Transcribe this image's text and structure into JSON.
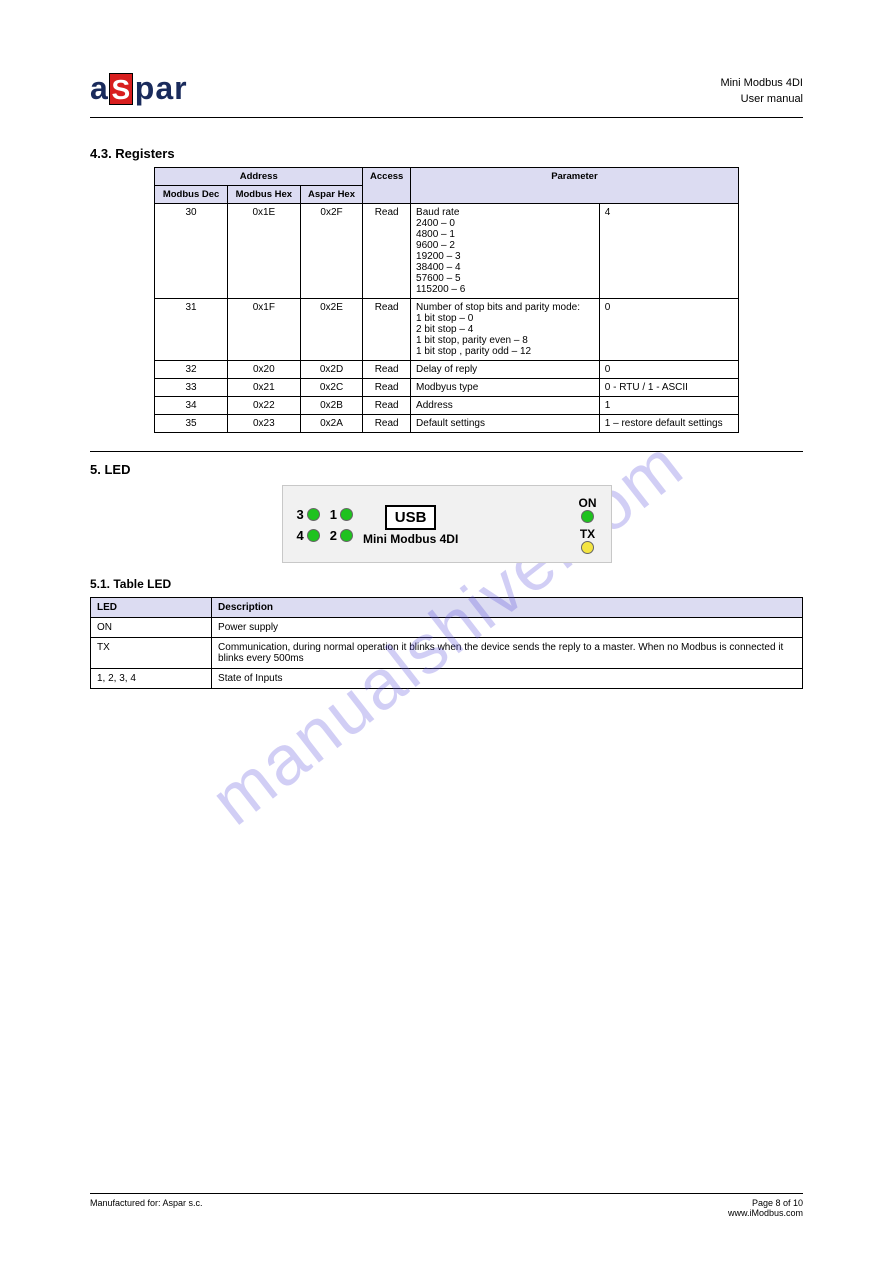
{
  "header": {
    "logo_letters": [
      "a",
      "S",
      "p",
      "a",
      "r"
    ],
    "right_line1": "Mini Modbus 4DI",
    "right_line2": "User manual"
  },
  "watermark": "manualshive.com",
  "section_registers_title": "4.3. Registers",
  "register_table": {
    "header_row1": [
      "Address",
      "Access",
      "Parameter"
    ],
    "header_row2": [
      "Modbus Dec",
      "Modbus Hex",
      "Aspar Hex"
    ],
    "rows": [
      {
        "cells": [
          "30",
          "0x1E",
          "0x2F",
          "Read",
          "Baud rate\n2400 – 0\n4800 – 1\n9600 – 2\n19200 – 3\n38400 – 4\n57600 – 5\n115200 – 6",
          "4"
        ]
      },
      {
        "cells": [
          "31",
          "0x1F",
          "0x2E",
          "Read",
          "Number of stop bits and parity mode:\n1 bit stop – 0\n2 bit stop – 4\n1 bit stop, parity even – 8\n1 bit stop , parity odd – 12",
          "0"
        ]
      },
      {
        "cells": [
          "32",
          "0x20",
          "0x2D",
          "Read",
          "Delay of reply",
          "0"
        ]
      },
      {
        "cells": [
          "33",
          "0x21",
          "0x2C",
          "Read",
          "Modbyus type",
          "0 - RTU / 1 - ASCII"
        ]
      },
      {
        "cells": [
          "34",
          "0x22",
          "0x2B",
          "Read",
          "Address",
          "1"
        ]
      },
      {
        "cells": [
          "35",
          "0x23",
          "0x2A",
          "Read",
          "Default settings",
          "1 – restore default settings"
        ]
      }
    ]
  },
  "section_led_title": "5. LED",
  "led_device": {
    "inputs": [
      [
        "3",
        "1"
      ],
      [
        "4",
        "2"
      ]
    ],
    "usb_label": "USB",
    "device_name": "Mini Modbus 4DI",
    "right_leds": [
      {
        "label": "ON",
        "color": "#1fc21f"
      },
      {
        "label": "TX",
        "color": "#f4e542"
      }
    ],
    "green": "#1fc21f"
  },
  "subsection_led_table_title": "5.1. Table LED",
  "led_table": {
    "headers": [
      "LED",
      "Description"
    ],
    "rows": [
      [
        "ON",
        "Power supply"
      ],
      [
        "TX",
        "Communication, during normal operation it blinks when the device sends the reply to a master. When no Modbus is connected it blinks every 500ms"
      ],
      [
        "1, 2, 3, 4",
        "State of Inputs"
      ]
    ]
  },
  "footer": {
    "left": "Manufactured for: Aspar s.c.",
    "right_top": "Page 8 of 10",
    "right_bottom": "www.iModbus.com"
  },
  "colors": {
    "th_bg": "#dcdcf2",
    "logo_red": "#d81e1e",
    "logo_blue": "#1a2b5c"
  }
}
